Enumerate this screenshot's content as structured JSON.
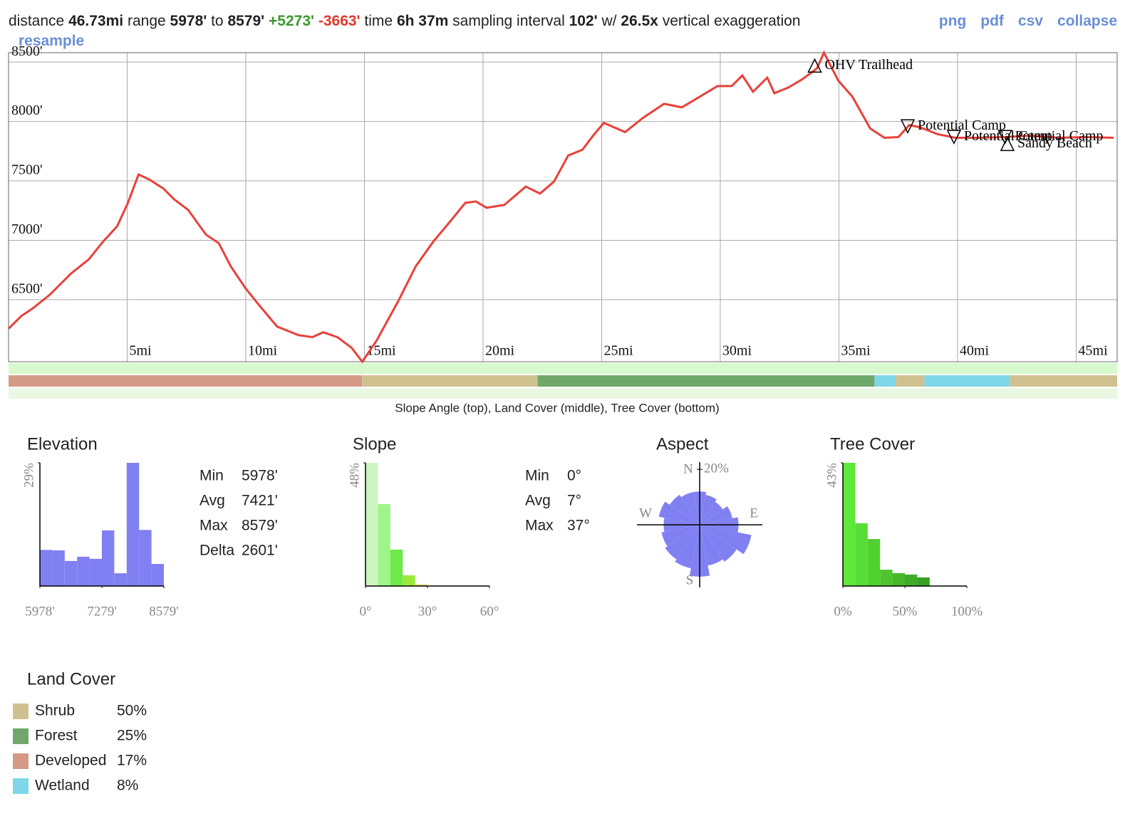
{
  "header": {
    "summary": [
      {
        "text": "distance",
        "style": "plain"
      },
      {
        "text": "46.73mi",
        "style": "bold"
      },
      {
        "text": "range",
        "style": "plain"
      },
      {
        "text": "5978'",
        "style": "bold"
      },
      {
        "text": "to",
        "style": "plain"
      },
      {
        "text": "8579'",
        "style": "bold"
      },
      {
        "text": "+5273'",
        "style": "gain"
      },
      {
        "text": "-3663'",
        "style": "loss"
      },
      {
        "text": "time",
        "style": "plain"
      },
      {
        "text": "6h 37m",
        "style": "bold"
      },
      {
        "text": "sampling interval",
        "style": "plain"
      },
      {
        "text": "102'",
        "style": "bold"
      },
      {
        "text": "w/",
        "style": "plain"
      },
      {
        "text": "26.5x",
        "style": "bold"
      },
      {
        "text": "vertical exaggeration",
        "style": "plain"
      },
      {
        "text": "resample",
        "style": "link"
      }
    ],
    "links": [
      "png",
      "pdf",
      "csv",
      "collapse"
    ]
  },
  "chart_data": [
    {
      "type": "line",
      "color": "#e8413a",
      "grid": true,
      "x": [
        0,
        0.54,
        0.99,
        1.74,
        2.63,
        3.38,
        3.98,
        4.58,
        5.03,
        5.48,
        5.93,
        6.53,
        6.98,
        7.57,
        8.32,
        8.86,
        9.37,
        9.97,
        10.57,
        11.32,
        12.22,
        12.81,
        13.26,
        13.86,
        14.46,
        14.91,
        15.51,
        16.41,
        17.16,
        17.9,
        18.65,
        19.25,
        19.7,
        20.15,
        20.9,
        21.8,
        22.4,
        22.99,
        23.59,
        24.19,
        24.64,
        25.09,
        25.99,
        26.74,
        27.63,
        28.38,
        29.13,
        29.88,
        30.48,
        30.93,
        31.38,
        31.98,
        32.28,
        32.87,
        33.47,
        34.07,
        34.37,
        34.97,
        35.57,
        36.32,
        36.92,
        37.51,
        37.96,
        38.41,
        39.16,
        39.91,
        40.96,
        42.01,
        43.05,
        44.25,
        45.45,
        46.58
      ],
      "values": [
        6256,
        6363,
        6423,
        6542,
        6720,
        6839,
        6988,
        7119,
        7315,
        7554,
        7512,
        7435,
        7345,
        7256,
        7048,
        6976,
        6780,
        6601,
        6452,
        6274,
        6202,
        6185,
        6226,
        6185,
        6095,
        5978,
        6155,
        6482,
        6780,
        6988,
        7167,
        7315,
        7327,
        7274,
        7298,
        7452,
        7393,
        7494,
        7714,
        7762,
        7881,
        7988,
        7911,
        8030,
        8149,
        8119,
        8208,
        8298,
        8298,
        8387,
        8250,
        8369,
        8238,
        8286,
        8357,
        8446,
        8579,
        8345,
        8208,
        7941,
        7863,
        7869,
        7970,
        7952,
        7893,
        7863,
        7863,
        7869,
        7881,
        7863,
        7869,
        7863
      ],
      "xlim": [
        0,
        46.73
      ],
      "ylim": [
        5978,
        8579
      ],
      "xticks": [
        {
          "value": 5,
          "label": "5mi"
        },
        {
          "value": 10,
          "label": "10mi"
        },
        {
          "value": 15,
          "label": "15mi"
        },
        {
          "value": 20,
          "label": "20mi"
        },
        {
          "value": 25,
          "label": "25mi"
        },
        {
          "value": 30,
          "label": "30mi"
        },
        {
          "value": 35,
          "label": "35mi"
        },
        {
          "value": 40,
          "label": "40mi"
        },
        {
          "value": 45,
          "label": "45mi"
        }
      ],
      "yticks": [
        {
          "value": 6500,
          "label": "6500'"
        },
        {
          "value": 7000,
          "label": "7000'"
        },
        {
          "value": 7500,
          "label": "7500'"
        },
        {
          "value": 8000,
          "label": "8000'"
        },
        {
          "value": 8500,
          "label": "8500'"
        }
      ],
      "annotations": [
        {
          "label": "OHV Trailhead",
          "x": 33.98,
          "y": 8470,
          "marker": "up"
        },
        {
          "label": "Potential Camp",
          "x": 37.9,
          "y": 7960,
          "marker": "down"
        },
        {
          "label": "Potential Camp",
          "x": 39.85,
          "y": 7870,
          "marker": "down"
        },
        {
          "label": "Potential Camp",
          "x": 42.0,
          "y": 7870,
          "marker": "down"
        },
        {
          "label": "Sandy Beach",
          "x": 42.1,
          "y": 7810,
          "marker": "up"
        }
      ]
    },
    {
      "type": "histogram",
      "title": "Elevation",
      "color": "#8080f2",
      "bins": [
        5978,
        6238.1,
        6498.2,
        6758.3,
        7018.4,
        7278.5,
        7538.6,
        7798.7,
        8058.8,
        8318.9,
        8579
      ],
      "values": [
        8.5,
        8.4,
        5.9,
        6.9,
        6.4,
        13.1,
        3.0,
        29,
        13.2,
        5.2
      ],
      "xlim": [
        5978,
        8579
      ],
      "ylim": [
        0,
        29
      ],
      "xticks": [
        {
          "value": 5978,
          "label": "5978'"
        },
        {
          "value": 7279,
          "label": "7279'"
        },
        {
          "value": 8579,
          "label": "8579'"
        }
      ],
      "yticks": [
        {
          "value": 29,
          "label": "29%"
        }
      ],
      "stats": [
        [
          "Min",
          "5978'"
        ],
        [
          "Avg",
          "7421'"
        ],
        [
          "Max",
          "8579'"
        ],
        [
          "Delta",
          "2601'"
        ]
      ]
    },
    {
      "type": "histogram",
      "title": "Slope",
      "colors": [
        "#cdf5c2",
        "#9ff589",
        "#6ee84a",
        "#9be83a",
        "#d8d060"
      ],
      "bins": [
        0,
        6,
        12,
        18,
        24,
        30
      ],
      "values": [
        48,
        31.9,
        14.2,
        4.2,
        0.6
      ],
      "xlim": [
        0,
        60
      ],
      "ylim": [
        0,
        48
      ],
      "xticks": [
        {
          "value": 0,
          "label": "0°"
        },
        {
          "value": 30,
          "label": "30°"
        },
        {
          "value": 60,
          "label": "60°"
        }
      ],
      "yticks": [
        {
          "value": 48,
          "label": "48%"
        }
      ],
      "stats": [
        [
          "Min",
          "0°"
        ],
        [
          "Avg",
          "7°"
        ],
        [
          "Max",
          "37°"
        ]
      ]
    },
    {
      "type": "rose",
      "title": "Aspect",
      "color": "#8080f2",
      "values": [
        12,
        11,
        10,
        12,
        14,
        19,
        16,
        15,
        18.7,
        16,
        15,
        14,
        13,
        15,
        13,
        12
      ],
      "compass": [
        "N",
        "E",
        "S",
        "W"
      ],
      "rlim": [
        0,
        22.6
      ],
      "rticks": [
        {
          "value": 20,
          "label": "20%"
        }
      ]
    },
    {
      "type": "histogram",
      "title": "Tree Cover",
      "colors": [
        "#5ee83a",
        "#58dc36",
        "#52d032",
        "#4cc42e",
        "#46b82a",
        "#40ac26",
        "#3aa022"
      ],
      "bins": [
        0,
        10,
        20,
        30,
        40,
        50,
        60,
        70
      ],
      "values": [
        43,
        21.9,
        16.4,
        5.7,
        4.5,
        4.0,
        3.0
      ],
      "xlim": [
        0,
        100
      ],
      "ylim": [
        0,
        43
      ],
      "xticks": [
        {
          "value": 0,
          "label": "0%"
        },
        {
          "value": 50,
          "label": "50%"
        },
        {
          "value": 100,
          "label": "100%"
        }
      ],
      "yticks": [
        {
          "value": 43,
          "label": "43%"
        }
      ]
    }
  ],
  "strips": {
    "caption": "Slope Angle (top), Land Cover (middle), Tree Cover (bottom)",
    "land_cover": [
      {
        "from": 0,
        "to": 14.9,
        "cover": "Developed"
      },
      {
        "from": 14.9,
        "to": 22.3,
        "cover": "Shrub"
      },
      {
        "from": 22.3,
        "to": 36.5,
        "cover": "Forest"
      },
      {
        "from": 36.5,
        "to": 37.4,
        "cover": "Wetland"
      },
      {
        "from": 37.4,
        "to": 38.6,
        "cover": "Shrub"
      },
      {
        "from": 38.6,
        "to": 42.2,
        "cover": "Wetland"
      },
      {
        "from": 42.2,
        "to": 46.73,
        "cover": "Shrub"
      }
    ]
  },
  "land_cover": {
    "title": "Land Cover",
    "categories": [
      "Shrub",
      "Forest",
      "Developed",
      "Wetland"
    ],
    "values": [
      50,
      25,
      17,
      8
    ],
    "value_labels": [
      "50%",
      "25%",
      "17%",
      "8%"
    ],
    "colors": [
      "#cfc18f",
      "#6fa86a",
      "#d49a88",
      "#7fd6e6"
    ]
  }
}
